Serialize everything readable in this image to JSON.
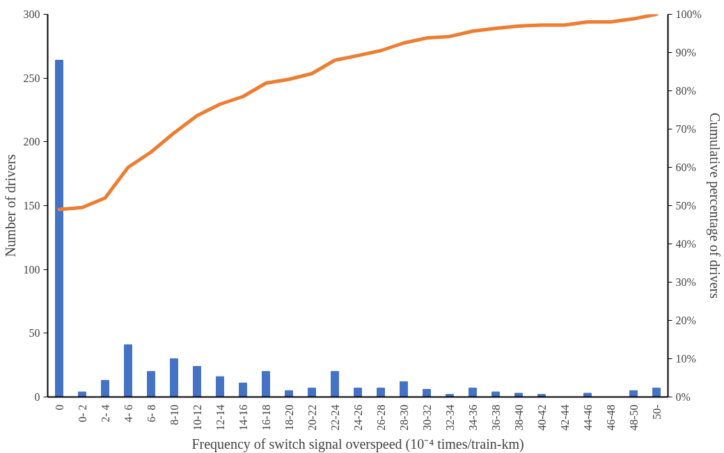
{
  "chart_data": {
    "type": "bar",
    "xlabel": "Frequency of switch signal overspeed (10⁻⁴ times/train-km)",
    "ylabel": "Number of drivers",
    "y2label": "Cumulative percentage of drivers",
    "categories": [
      "0",
      "0- 2",
      "2- 4",
      "4- 6",
      "6- 8",
      "8-10",
      "10-12",
      "12-14",
      "14-16",
      "16-18",
      "18-20",
      "20-22",
      "22-24",
      "24-26",
      "26-28",
      "28-30",
      "30-32",
      "32-34",
      "34-36",
      "36-38",
      "38-40",
      "40-42",
      "42-44",
      "44-46",
      "46-48",
      "48-50",
      "50-"
    ],
    "series": [
      {
        "color": "#4472c4",
        "values": [
          264,
          4,
          13,
          41,
          20,
          30,
          24,
          16,
          11,
          20,
          5,
          7,
          20,
          7,
          7,
          12,
          6,
          2,
          7,
          4,
          3,
          2,
          0,
          3,
          0,
          5,
          7
        ]
      },
      {
        "type": "line",
        "axis": "y2",
        "color": "#ed7d31",
        "values": [
          49,
          49.5,
          52,
          60,
          64,
          69,
          73.5,
          76.5,
          78.5,
          82,
          83,
          84.5,
          88,
          89.2,
          90.5,
          92.5,
          93.8,
          94.2,
          95.6,
          96.3,
          96.9,
          97.2,
          97.2,
          98,
          98,
          98.8,
          100
        ]
      }
    ],
    "ylim": [
      0,
      300
    ],
    "yticks": [
      0,
      50,
      100,
      150,
      200,
      250,
      300
    ],
    "y2lim": [
      0,
      100
    ],
    "y2ticks": [
      {
        "value": 0,
        "label": "0%"
      },
      {
        "value": 10,
        "label": "10%"
      },
      {
        "value": 20,
        "label": "20%"
      },
      {
        "value": 30,
        "label": "30%"
      },
      {
        "value": 40,
        "label": "40%"
      },
      {
        "value": 50,
        "label": "50%"
      },
      {
        "value": 60,
        "label": "60%"
      },
      {
        "value": 70,
        "label": "70%"
      },
      {
        "value": 80,
        "label": "80%"
      },
      {
        "value": 90,
        "label": "90%"
      },
      {
        "value": 100,
        "label": "100%"
      }
    ],
    "grid": false,
    "line_style": "solid",
    "marker": "none"
  }
}
